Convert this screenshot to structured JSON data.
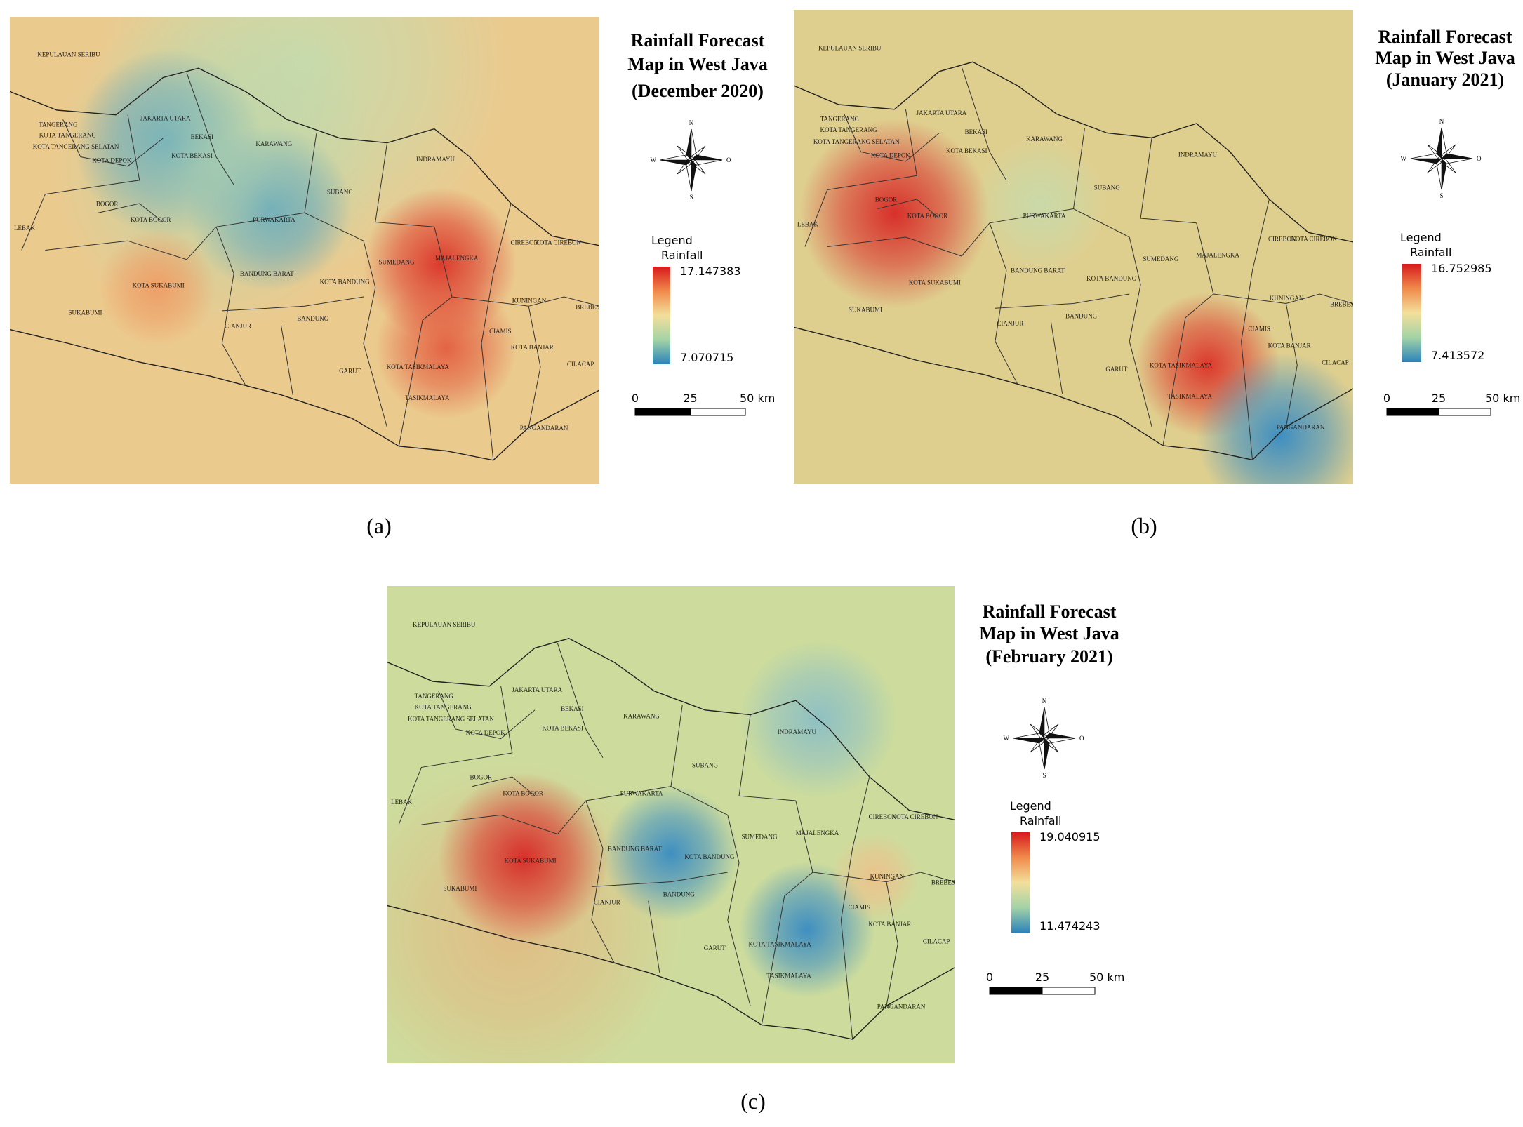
{
  "regions": [
    "KEPULAUAN SERIBU",
    "TANGERANG",
    "KOTA TANGERANG",
    "KOTA TANGERANG SELATAN",
    "KOTA DEPOK",
    "JAKARTA UTARA",
    "BEKASI",
    "KOTA BEKASI",
    "KARAWANG",
    "BOGOR",
    "KOTA BOGOR",
    "LEBAK",
    "PURWAKARTA",
    "SUBANG",
    "INDRAMAYU",
    "CIREBON",
    "KOTA CIREBON",
    "SUMEDANG",
    "MAJALENGKA",
    "KUNINGAN",
    "BREBES",
    "KOTA SUKABUMI",
    "SUKABUMI",
    "BANDUNG BARAT",
    "KOTA BANDUNG",
    "BANDUNG",
    "CIANJUR",
    "GARUT",
    "CIAMIS",
    "KOTA BANJAR",
    "CILACAP",
    "KOTA TASIKMALAYA",
    "TASIKMALAYA",
    "PANGANDARAN"
  ],
  "panels": [
    {
      "caption": "(a)",
      "title": [
        "Rainfall Forecast",
        "Map in West Java",
        "(December 2020)"
      ],
      "legend": {
        "title": "Legend",
        "field": "Rainfall",
        "max": "17.147383",
        "min": "7.070715"
      },
      "scale": [
        "0",
        "25",
        "50 km"
      ],
      "compass": [
        "N",
        "W",
        "O",
        "S"
      ]
    },
    {
      "caption": "(b)",
      "title": [
        "Rainfall Forecast",
        "Map in West Java",
        "(January 2021)"
      ],
      "legend": {
        "title": "Legend",
        "field": "Rainfall",
        "max": "16.752985",
        "min": "7.413572"
      },
      "scale": [
        "0",
        "25",
        "50 km"
      ],
      "compass": [
        "N",
        "W",
        "O",
        "S"
      ]
    },
    {
      "caption": "(c)",
      "title": [
        "Rainfall Forecast",
        "Map in West Java",
        "(February 2021)"
      ],
      "legend": {
        "title": "Legend",
        "field": "Rainfall",
        "max": "19.040915",
        "min": "11.474243"
      },
      "scale": [
        "0",
        "25",
        "50 km"
      ],
      "compass": [
        "N",
        "W",
        "O",
        "S"
      ]
    }
  ]
}
